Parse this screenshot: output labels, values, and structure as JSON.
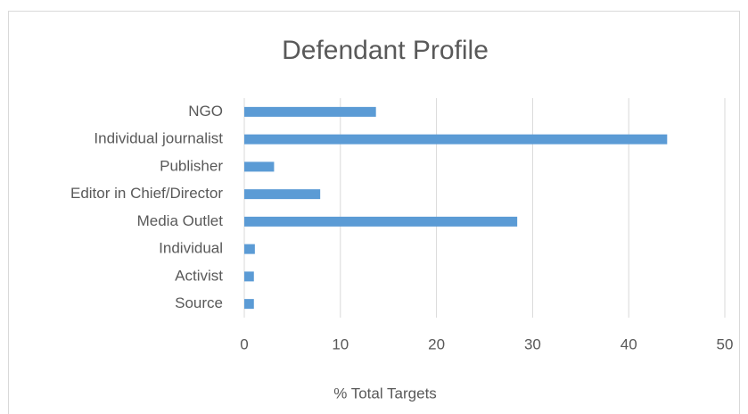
{
  "chart_data": {
    "type": "bar",
    "orientation": "horizontal",
    "title": "Defendant Profile",
    "categories": [
      "NGO",
      "Individual journalist",
      "Publisher",
      "Editor in Chief/Director",
      "Media Outlet",
      "Individual",
      "Activist",
      "Source"
    ],
    "values": [
      13.7,
      44.0,
      3.1,
      7.9,
      28.4,
      1.1,
      1.0,
      1.0
    ],
    "color": "#5b9bd5",
    "xlabel": "% Total Targets",
    "xlim": [
      0,
      50
    ],
    "xticks": [
      0,
      10,
      20,
      30,
      40,
      50
    ],
    "grid": true
  }
}
